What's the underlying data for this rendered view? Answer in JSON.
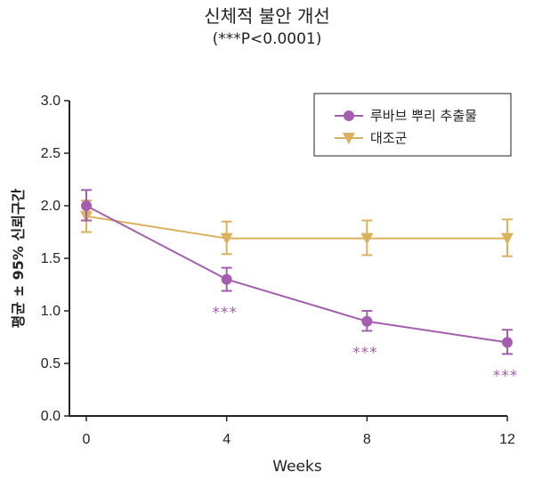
{
  "chart_data": {
    "type": "line",
    "title": "신체적 불안 개선",
    "subtitle": "(***P<0.0001)",
    "xlabel": "Weeks",
    "ylabel": "평균 ± 95% 신뢰구간",
    "x": [
      0,
      4,
      8,
      12
    ],
    "xticks": [
      "0",
      "4",
      "8",
      "12"
    ],
    "xlim": [
      0,
      12
    ],
    "ylim": [
      0,
      3.0
    ],
    "yticks": [
      "0.0",
      "0.5",
      "1.0",
      "1.5",
      "2.0",
      "2.5",
      "3.0"
    ],
    "grid": false,
    "legend_position": "top-right",
    "series": [
      {
        "name": "루바브 뿌리 추출물",
        "marker": "circle",
        "color": "#a35fad",
        "values": [
          2.0,
          1.3,
          0.9,
          0.7
        ],
        "err_low": [
          1.86,
          1.19,
          0.81,
          0.59
        ],
        "err_high": [
          2.15,
          1.41,
          1.0,
          0.82
        ],
        "annotations": [
          "",
          "***",
          "***",
          "***"
        ]
      },
      {
        "name": "대조군",
        "marker": "triangle-down",
        "color": "#d9b25e",
        "values": [
          1.9,
          1.69,
          1.69,
          1.69
        ],
        "err_low": [
          1.75,
          1.54,
          1.53,
          1.52
        ],
        "err_high": [
          2.05,
          1.85,
          1.86,
          1.87
        ],
        "annotations": [
          "",
          "",
          "",
          ""
        ]
      }
    ]
  }
}
